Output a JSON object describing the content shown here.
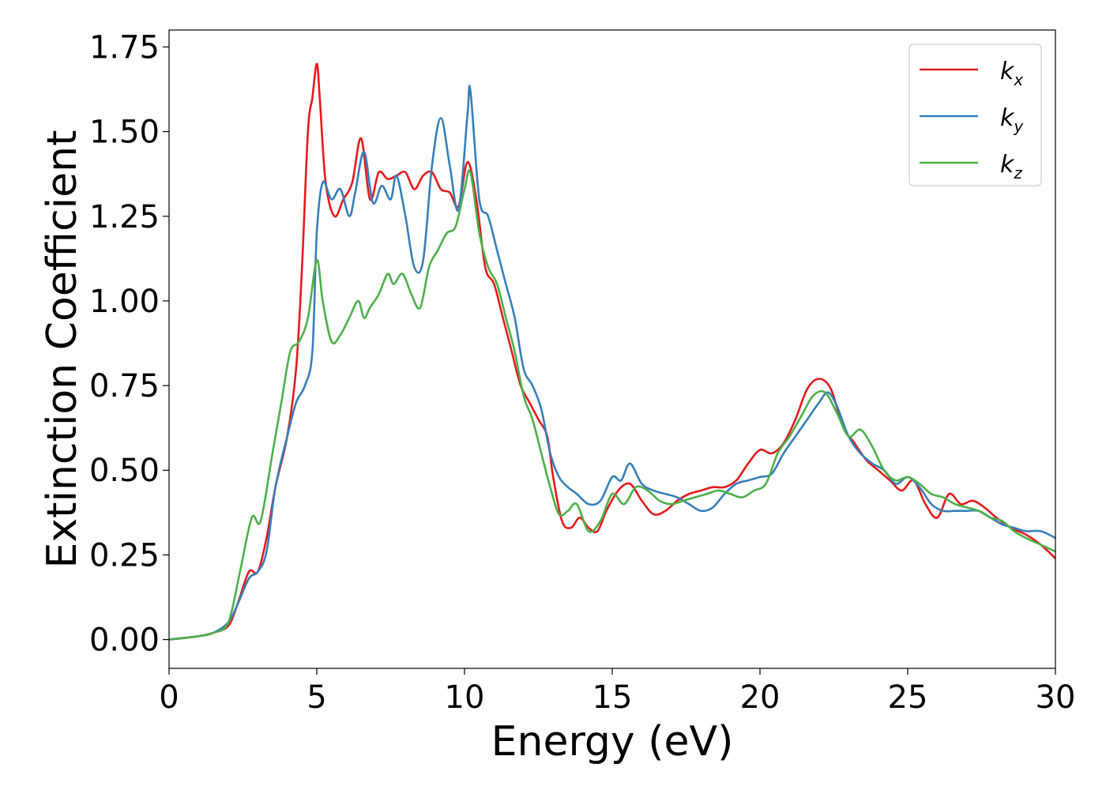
{
  "chart_data": {
    "type": "line",
    "xlabel": "Energy (eV)",
    "ylabel": "Extinction Coefficient",
    "xlim": [
      0,
      30
    ],
    "ylim": [
      -0.085,
      1.8
    ],
    "xticks": [
      0,
      5,
      10,
      15,
      20,
      25,
      30
    ],
    "xtick_labels": [
      "0",
      "5",
      "10",
      "15",
      "20",
      "25",
      "30"
    ],
    "yticks": [
      0.0,
      0.25,
      0.5,
      0.75,
      1.0,
      1.25,
      1.5,
      1.75
    ],
    "ytick_labels": [
      "0.00",
      "0.25",
      "0.50",
      "0.75",
      "1.00",
      "1.25",
      "1.50",
      "1.75"
    ],
    "grid": false,
    "legend_position": "top-right",
    "series": [
      {
        "name": "k_x",
        "label_main": "k",
        "label_sub": "x",
        "color": "#e41a1c",
        "x": [
          0,
          1,
          1.5,
          2.0,
          2.3,
          2.7,
          3.0,
          3.3,
          3.6,
          4.0,
          4.3,
          4.5,
          4.7,
          4.85,
          5.0,
          5.1,
          5.3,
          5.6,
          5.9,
          6.2,
          6.5,
          6.8,
          7.1,
          7.4,
          7.7,
          8.0,
          8.3,
          8.6,
          8.9,
          9.2,
          9.5,
          9.8,
          10.1,
          10.4,
          10.7,
          11.0,
          11.3,
          11.6,
          11.9,
          12.2,
          12.5,
          12.8,
          13.0,
          13.3,
          13.6,
          13.9,
          14.2,
          14.5,
          14.8,
          15.2,
          15.6,
          16.0,
          16.4,
          16.8,
          17.2,
          17.6,
          18.0,
          18.4,
          18.8,
          19.2,
          19.6,
          20.0,
          20.4,
          20.8,
          21.2,
          21.6,
          22.0,
          22.4,
          22.8,
          23.2,
          23.6,
          24.0,
          24.4,
          24.8,
          25.2,
          25.6,
          26.0,
          26.4,
          26.8,
          27.2,
          27.6,
          28.0,
          28.5,
          29.0,
          29.5,
          30.0
        ],
        "values": [
          0.0,
          0.01,
          0.02,
          0.04,
          0.1,
          0.2,
          0.2,
          0.3,
          0.45,
          0.6,
          0.8,
          1.1,
          1.5,
          1.6,
          1.7,
          1.6,
          1.35,
          1.25,
          1.3,
          1.35,
          1.48,
          1.3,
          1.38,
          1.36,
          1.37,
          1.38,
          1.33,
          1.37,
          1.38,
          1.33,
          1.32,
          1.28,
          1.41,
          1.3,
          1.1,
          1.05,
          0.95,
          0.85,
          0.75,
          0.7,
          0.65,
          0.6,
          0.48,
          0.35,
          0.33,
          0.36,
          0.33,
          0.32,
          0.38,
          0.44,
          0.46,
          0.41,
          0.37,
          0.38,
          0.41,
          0.43,
          0.44,
          0.45,
          0.45,
          0.47,
          0.52,
          0.56,
          0.55,
          0.58,
          0.65,
          0.74,
          0.77,
          0.74,
          0.63,
          0.58,
          0.53,
          0.5,
          0.47,
          0.44,
          0.47,
          0.4,
          0.36,
          0.43,
          0.4,
          0.41,
          0.39,
          0.36,
          0.33,
          0.31,
          0.28,
          0.24
        ]
      },
      {
        "name": "k_y",
        "label_main": "k",
        "label_sub": "y",
        "color": "#377eb8",
        "x": [
          0,
          1,
          1.5,
          2.0,
          2.3,
          2.7,
          3.0,
          3.3,
          3.6,
          4.0,
          4.3,
          4.6,
          4.85,
          5.0,
          5.2,
          5.5,
          5.8,
          6.1,
          6.3,
          6.6,
          6.9,
          7.2,
          7.5,
          7.7,
          8.0,
          8.3,
          8.6,
          8.9,
          9.2,
          9.5,
          9.8,
          10.1,
          10.2,
          10.5,
          10.8,
          11.1,
          11.4,
          11.7,
          12.0,
          12.3,
          12.6,
          12.9,
          13.2,
          13.5,
          13.8,
          14.2,
          14.6,
          15.0,
          15.3,
          15.6,
          16.0,
          16.4,
          16.8,
          17.2,
          17.6,
          18.0,
          18.4,
          18.8,
          19.2,
          19.6,
          20.0,
          20.4,
          20.8,
          21.2,
          21.6,
          22.0,
          22.3,
          22.6,
          23.0,
          23.4,
          23.8,
          24.2,
          24.6,
          25.0,
          25.4,
          25.8,
          26.2,
          26.6,
          27.0,
          27.4,
          27.8,
          28.2,
          28.6,
          29.0,
          29.5,
          30.0
        ],
        "values": [
          0.0,
          0.01,
          0.02,
          0.05,
          0.1,
          0.18,
          0.2,
          0.26,
          0.45,
          0.6,
          0.7,
          0.75,
          0.85,
          1.2,
          1.35,
          1.3,
          1.33,
          1.25,
          1.32,
          1.44,
          1.29,
          1.34,
          1.3,
          1.37,
          1.25,
          1.1,
          1.12,
          1.4,
          1.54,
          1.4,
          1.27,
          1.55,
          1.62,
          1.3,
          1.25,
          1.15,
          1.05,
          0.95,
          0.8,
          0.75,
          0.68,
          0.55,
          0.48,
          0.45,
          0.43,
          0.4,
          0.41,
          0.48,
          0.47,
          0.52,
          0.46,
          0.44,
          0.43,
          0.42,
          0.4,
          0.38,
          0.39,
          0.43,
          0.46,
          0.47,
          0.48,
          0.49,
          0.55,
          0.6,
          0.65,
          0.7,
          0.73,
          0.69,
          0.6,
          0.55,
          0.52,
          0.5,
          0.46,
          0.48,
          0.45,
          0.4,
          0.38,
          0.38,
          0.38,
          0.38,
          0.36,
          0.34,
          0.33,
          0.32,
          0.32,
          0.3
        ]
      },
      {
        "name": "k_z",
        "label_main": "k",
        "label_sub": "z",
        "color": "#4daf4a",
        "x": [
          0,
          1,
          1.5,
          2.0,
          2.4,
          2.8,
          3.1,
          3.5,
          3.8,
          4.1,
          4.4,
          4.7,
          5.0,
          5.2,
          5.5,
          5.8,
          6.1,
          6.4,
          6.6,
          6.8,
          7.1,
          7.4,
          7.6,
          7.9,
          8.2,
          8.5,
          8.8,
          9.1,
          9.4,
          9.7,
          10.0,
          10.2,
          10.5,
          10.8,
          11.1,
          11.4,
          11.7,
          12.0,
          12.3,
          12.6,
          12.9,
          13.2,
          13.5,
          13.8,
          14.2,
          14.6,
          15.0,
          15.4,
          15.8,
          16.2,
          16.6,
          17.0,
          17.4,
          17.8,
          18.2,
          18.6,
          19.0,
          19.4,
          19.8,
          20.2,
          20.6,
          21.0,
          21.4,
          21.8,
          22.2,
          22.6,
          23.0,
          23.4,
          23.8,
          24.2,
          24.6,
          25.0,
          25.4,
          25.8,
          26.2,
          26.6,
          27.0,
          27.4,
          27.8,
          28.2,
          28.6,
          29.0,
          29.5,
          30.0
        ],
        "values": [
          0.0,
          0.01,
          0.02,
          0.05,
          0.2,
          0.36,
          0.35,
          0.55,
          0.7,
          0.85,
          0.88,
          0.95,
          1.12,
          1.0,
          0.88,
          0.9,
          0.95,
          1.0,
          0.95,
          0.98,
          1.02,
          1.08,
          1.05,
          1.08,
          1.02,
          0.98,
          1.1,
          1.15,
          1.2,
          1.22,
          1.33,
          1.38,
          1.2,
          1.1,
          1.05,
          0.95,
          0.85,
          0.72,
          0.65,
          0.55,
          0.45,
          0.37,
          0.38,
          0.4,
          0.32,
          0.35,
          0.43,
          0.4,
          0.45,
          0.44,
          0.41,
          0.4,
          0.41,
          0.42,
          0.43,
          0.44,
          0.43,
          0.42,
          0.44,
          0.46,
          0.55,
          0.6,
          0.66,
          0.72,
          0.73,
          0.67,
          0.6,
          0.62,
          0.57,
          0.5,
          0.47,
          0.48,
          0.46,
          0.43,
          0.42,
          0.4,
          0.39,
          0.38,
          0.36,
          0.35,
          0.32,
          0.3,
          0.28,
          0.26
        ]
      }
    ]
  }
}
